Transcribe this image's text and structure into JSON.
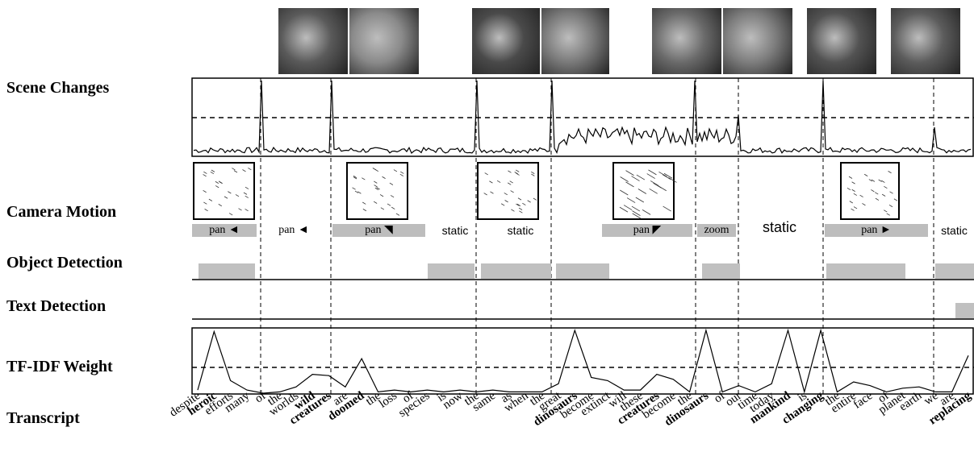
{
  "rows": {
    "scene_changes": "Scene Changes",
    "camera_motion": "Camera Motion",
    "object_detection": "Object Detection",
    "text_detection": "Text Detection",
    "tfidf_weight": "TF-IDF Weight",
    "transcript": "Transcript"
  },
  "thumbnails": [
    {
      "name": "thumb-snake",
      "color": "#5a5a5a"
    },
    {
      "name": "thumb-lizard",
      "color": "#8a8a8a"
    },
    {
      "name": "thumb-bird",
      "color": "#4a4a4a"
    },
    {
      "name": "thumb-dinosaur",
      "color": "#7a7a7a"
    },
    {
      "name": "thumb-car",
      "color": "#6a6a6a"
    },
    {
      "name": "thumb-crowd",
      "color": "#7d7d7d"
    },
    {
      "name": "thumb-flowers-1",
      "color": "#525252"
    },
    {
      "name": "thumb-flowers-2",
      "color": "#5c5c5c"
    }
  ],
  "camera_motion_labels": [
    {
      "label": "pan",
      "arrow": "◄",
      "shaded": true
    },
    {
      "label": "pan",
      "arrow": "◄",
      "shaded": false
    },
    {
      "label": "pan",
      "arrow": "◥",
      "shaded": true
    },
    {
      "label": "static",
      "arrow": "",
      "shaded": false
    },
    {
      "label": "static",
      "arrow": "",
      "shaded": false
    },
    {
      "label": "pan",
      "arrow": "◤",
      "shaded": true
    },
    {
      "label": "zoom",
      "arrow": "",
      "shaded": true
    },
    {
      "label": "static",
      "arrow": "",
      "shaded": false
    },
    {
      "label": "pan",
      "arrow": "►",
      "shaded": true
    },
    {
      "label": "static",
      "arrow": "",
      "shaded": false
    }
  ],
  "transcript_words": [
    {
      "w": "despite",
      "b": false
    },
    {
      "w": "heroic",
      "b": true
    },
    {
      "w": "efforts",
      "b": false
    },
    {
      "w": "many",
      "b": false
    },
    {
      "w": "of",
      "b": false
    },
    {
      "w": "the",
      "b": false
    },
    {
      "w": "worlds",
      "b": false
    },
    {
      "w": "wild",
      "b": true
    },
    {
      "w": "creatures",
      "b": true
    },
    {
      "w": "are",
      "b": false
    },
    {
      "w": "doomed",
      "b": true
    },
    {
      "w": "the",
      "b": false
    },
    {
      "w": "loss",
      "b": false
    },
    {
      "w": "of",
      "b": false
    },
    {
      "w": "species",
      "b": false
    },
    {
      "w": "is",
      "b": false
    },
    {
      "w": "now",
      "b": false
    },
    {
      "w": "the",
      "b": false
    },
    {
      "w": "same",
      "b": false
    },
    {
      "w": "as",
      "b": false
    },
    {
      "w": "when",
      "b": false
    },
    {
      "w": "the",
      "b": false
    },
    {
      "w": "great",
      "b": false
    },
    {
      "w": "dinosaurs",
      "b": true
    },
    {
      "w": "become",
      "b": false
    },
    {
      "w": "extinct",
      "b": false
    },
    {
      "w": "will",
      "b": false
    },
    {
      "w": "these",
      "b": false
    },
    {
      "w": "creatures",
      "b": true
    },
    {
      "w": "become",
      "b": false
    },
    {
      "w": "the",
      "b": false
    },
    {
      "w": "dinosaurs",
      "b": true
    },
    {
      "w": "of",
      "b": false
    },
    {
      "w": "our",
      "b": false
    },
    {
      "w": "time",
      "b": false
    },
    {
      "w": "today",
      "b": false
    },
    {
      "w": "mankind",
      "b": true
    },
    {
      "w": "is",
      "b": false
    },
    {
      "w": "changing",
      "b": true
    },
    {
      "w": "the",
      "b": false
    },
    {
      "w": "entire",
      "b": false
    },
    {
      "w": "face",
      "b": false
    },
    {
      "w": "of",
      "b": false
    },
    {
      "w": "planet",
      "b": false
    },
    {
      "w": "earth",
      "b": false
    },
    {
      "w": "we",
      "b": false
    },
    {
      "w": "are",
      "b": false
    },
    {
      "w": "replacing",
      "b": true
    }
  ],
  "tfidf_values": [
    0.05,
    0.98,
    0.2,
    0.05,
    0.0,
    0.02,
    0.1,
    0.3,
    0.28,
    0.1,
    0.55,
    0.02,
    0.05,
    0.02,
    0.05,
    0.02,
    0.05,
    0.02,
    0.05,
    0.02,
    0.02,
    0.02,
    0.15,
    1.0,
    0.25,
    0.2,
    0.05,
    0.05,
    0.3,
    0.22,
    0.02,
    1.0,
    0.02,
    0.12,
    0.02,
    0.15,
    1.0,
    0.02,
    1.0,
    0.02,
    0.18,
    0.12,
    0.02,
    0.08,
    0.1,
    0.02,
    0.02,
    0.6
  ]
}
